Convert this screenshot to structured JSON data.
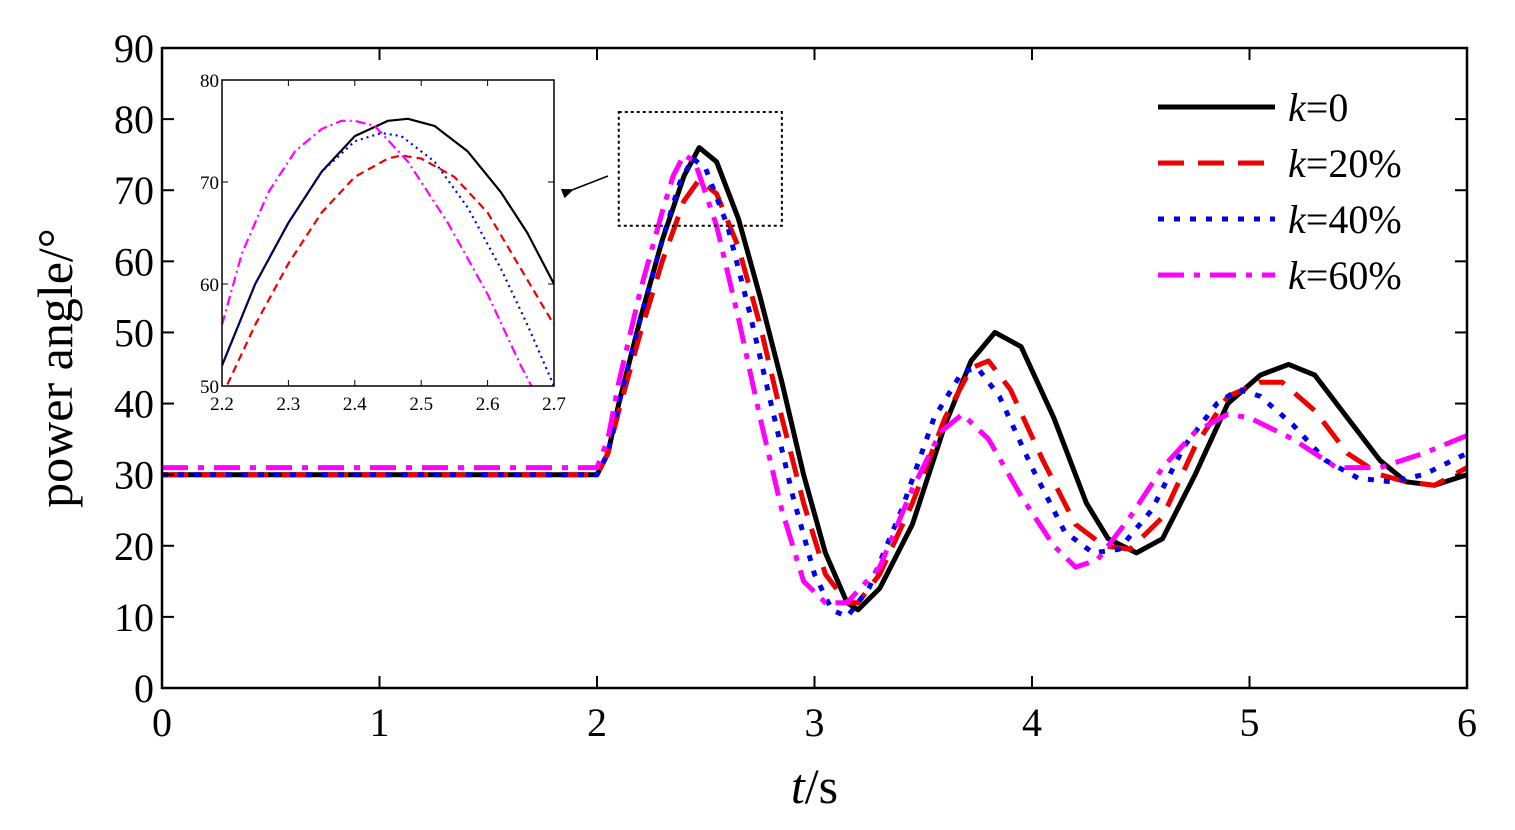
{
  "chart_data": {
    "type": "line",
    "xlabel": {
      "var": "t",
      "unit": "/s"
    },
    "ylabel": "power angle/°",
    "xlim": [
      0,
      6
    ],
    "ylim": [
      0,
      90
    ],
    "xticks": [
      "0",
      "1",
      "2",
      "3",
      "4",
      "5",
      "6"
    ],
    "yticks": [
      "0",
      "10",
      "20",
      "30",
      "40",
      "50",
      "60",
      "70",
      "80",
      "90"
    ],
    "grid": false,
    "legend_position": "top-right",
    "series": [
      {
        "name": {
          "var": "k",
          "rest": "=0"
        },
        "color": "#000000",
        "style": "solid",
        "x": [
          0,
          1,
          2,
          2.05,
          2.1,
          2.2,
          2.3,
          2.4,
          2.47,
          2.55,
          2.65,
          2.75,
          2.85,
          2.95,
          3.05,
          3.15,
          3.2,
          3.3,
          3.45,
          3.6,
          3.72,
          3.83,
          3.95,
          4.1,
          4.25,
          4.35,
          4.48,
          4.6,
          4.75,
          4.9,
          5.05,
          5.18,
          5.3,
          5.45,
          5.6,
          5.72,
          5.85,
          6.0
        ],
        "y": [
          30,
          30,
          30,
          33,
          40,
          52,
          63,
          72,
          76,
          74,
          66,
          55,
          43,
          30,
          19,
          12,
          11,
          14,
          23,
          37,
          46,
          50,
          48,
          38,
          26,
          21,
          19,
          21,
          30,
          40,
          44,
          45.5,
          44,
          38,
          32,
          29,
          28.5,
          30
        ]
      },
      {
        "name": {
          "var": "k",
          "rest": "=20%"
        },
        "color": "#ee0000",
        "style": "dashed",
        "x": [
          0,
          1,
          2,
          2.05,
          2.1,
          2.2,
          2.3,
          2.4,
          2.47,
          2.55,
          2.65,
          2.75,
          2.85,
          2.95,
          3.05,
          3.15,
          3.2,
          3.3,
          3.45,
          3.6,
          3.72,
          3.8,
          3.9,
          4.05,
          4.2,
          4.33,
          4.45,
          4.6,
          4.75,
          4.9,
          5.05,
          5.15,
          5.3,
          5.45,
          5.6,
          5.72,
          5.85,
          6.0
        ],
        "y": [
          30,
          30,
          30,
          33,
          39,
          50,
          60,
          68.5,
          71.5,
          69.5,
          62,
          51,
          38,
          26,
          16,
          12,
          12,
          16,
          26,
          38,
          45,
          46,
          42,
          32,
          23,
          20,
          19.5,
          24,
          34,
          41,
          43,
          43,
          39,
          33,
          30,
          29,
          28.5,
          31
        ]
      },
      {
        "name": {
          "var": "k",
          "rest": "=40%"
        },
        "color": "#0000ee",
        "style": "dotted",
        "x": [
          0,
          1,
          2,
          2.05,
          2.1,
          2.2,
          2.3,
          2.38,
          2.44,
          2.5,
          2.6,
          2.7,
          2.8,
          2.9,
          3.0,
          3.08,
          3.15,
          3.25,
          3.4,
          3.55,
          3.68,
          3.75,
          3.85,
          4.0,
          4.15,
          4.28,
          4.4,
          4.55,
          4.7,
          4.85,
          4.95,
          5.05,
          5.2,
          5.35,
          5.5,
          5.65,
          5.8,
          6.0
        ],
        "y": [
          30,
          30,
          30,
          33,
          40,
          52,
          63,
          71,
          74.5,
          73,
          65,
          53,
          40,
          27,
          16,
          11,
          10,
          14,
          25,
          38,
          44.5,
          45,
          41,
          31,
          22,
          19,
          19.5,
          25,
          34,
          40,
          42,
          41,
          37,
          32,
          29.5,
          29,
          30,
          33
        ]
      },
      {
        "name": {
          "var": "k",
          "rest": "=60%"
        },
        "color": "#ff00ff",
        "style": "dashdot",
        "x": [
          0,
          1,
          2,
          2.05,
          2.1,
          2.2,
          2.3,
          2.35,
          2.4,
          2.45,
          2.55,
          2.65,
          2.75,
          2.85,
          2.95,
          3.05,
          3.15,
          3.3,
          3.45,
          3.58,
          3.68,
          3.8,
          3.95,
          4.1,
          4.2,
          4.3,
          4.45,
          4.6,
          4.75,
          4.9,
          5.0,
          5.2,
          5.4,
          5.6,
          5.8,
          6.0
        ],
        "y": [
          31,
          31,
          31,
          35,
          43,
          56,
          67,
          72,
          75,
          74,
          65,
          52,
          38,
          25,
          15,
          12,
          12,
          17,
          28,
          36,
          38.5,
          35,
          27,
          20,
          17,
          18,
          24,
          31,
          36,
          38.5,
          38,
          35,
          31,
          31,
          33,
          35.5
        ]
      }
    ],
    "zoom_box": {
      "x": [
        2.1,
        2.85
      ],
      "y": [
        65,
        81
      ]
    },
    "inset": {
      "xlim": [
        2.2,
        2.7
      ],
      "ylim": [
        50,
        80
      ],
      "xticks": [
        "2.2",
        "2.3",
        "2.4",
        "2.5",
        "2.6",
        "2.7"
      ],
      "yticks": [
        "50",
        "60",
        "70",
        "80"
      ],
      "series": [
        {
          "color": "#000000",
          "style": "solid",
          "x": [
            2.2,
            2.25,
            2.3,
            2.35,
            2.4,
            2.45,
            2.48,
            2.52,
            2.57,
            2.62,
            2.66,
            2.7
          ],
          "y": [
            52,
            60,
            66,
            71,
            74.5,
            76,
            76.2,
            75.5,
            73,
            69,
            65,
            60
          ]
        },
        {
          "color": "#ee0000",
          "style": "dashed",
          "x": [
            2.2,
            2.25,
            2.3,
            2.35,
            2.4,
            2.45,
            2.47,
            2.5,
            2.55,
            2.6,
            2.65,
            2.7
          ],
          "y": [
            49,
            56,
            62,
            67,
            70.5,
            72.3,
            72.6,
            72.3,
            70.5,
            67,
            61.5,
            56
          ]
        },
        {
          "color": "#0000ee",
          "style": "dotted",
          "x": [
            2.2,
            2.25,
            2.3,
            2.35,
            2.4,
            2.44,
            2.47,
            2.52,
            2.57,
            2.62,
            2.66,
            2.7
          ],
          "y": [
            52,
            60,
            66,
            71,
            74,
            74.8,
            74.5,
            72,
            67.5,
            61.5,
            56,
            50
          ]
        },
        {
          "color": "#ff00ff",
          "style": "dashdot",
          "x": [
            2.2,
            2.23,
            2.27,
            2.31,
            2.35,
            2.38,
            2.4,
            2.43,
            2.48,
            2.54,
            2.6,
            2.65,
            2.69
          ],
          "y": [
            56,
            63,
            69,
            73,
            75.2,
            76,
            76,
            75.5,
            72,
            66,
            59,
            52,
            47
          ]
        }
      ]
    }
  }
}
